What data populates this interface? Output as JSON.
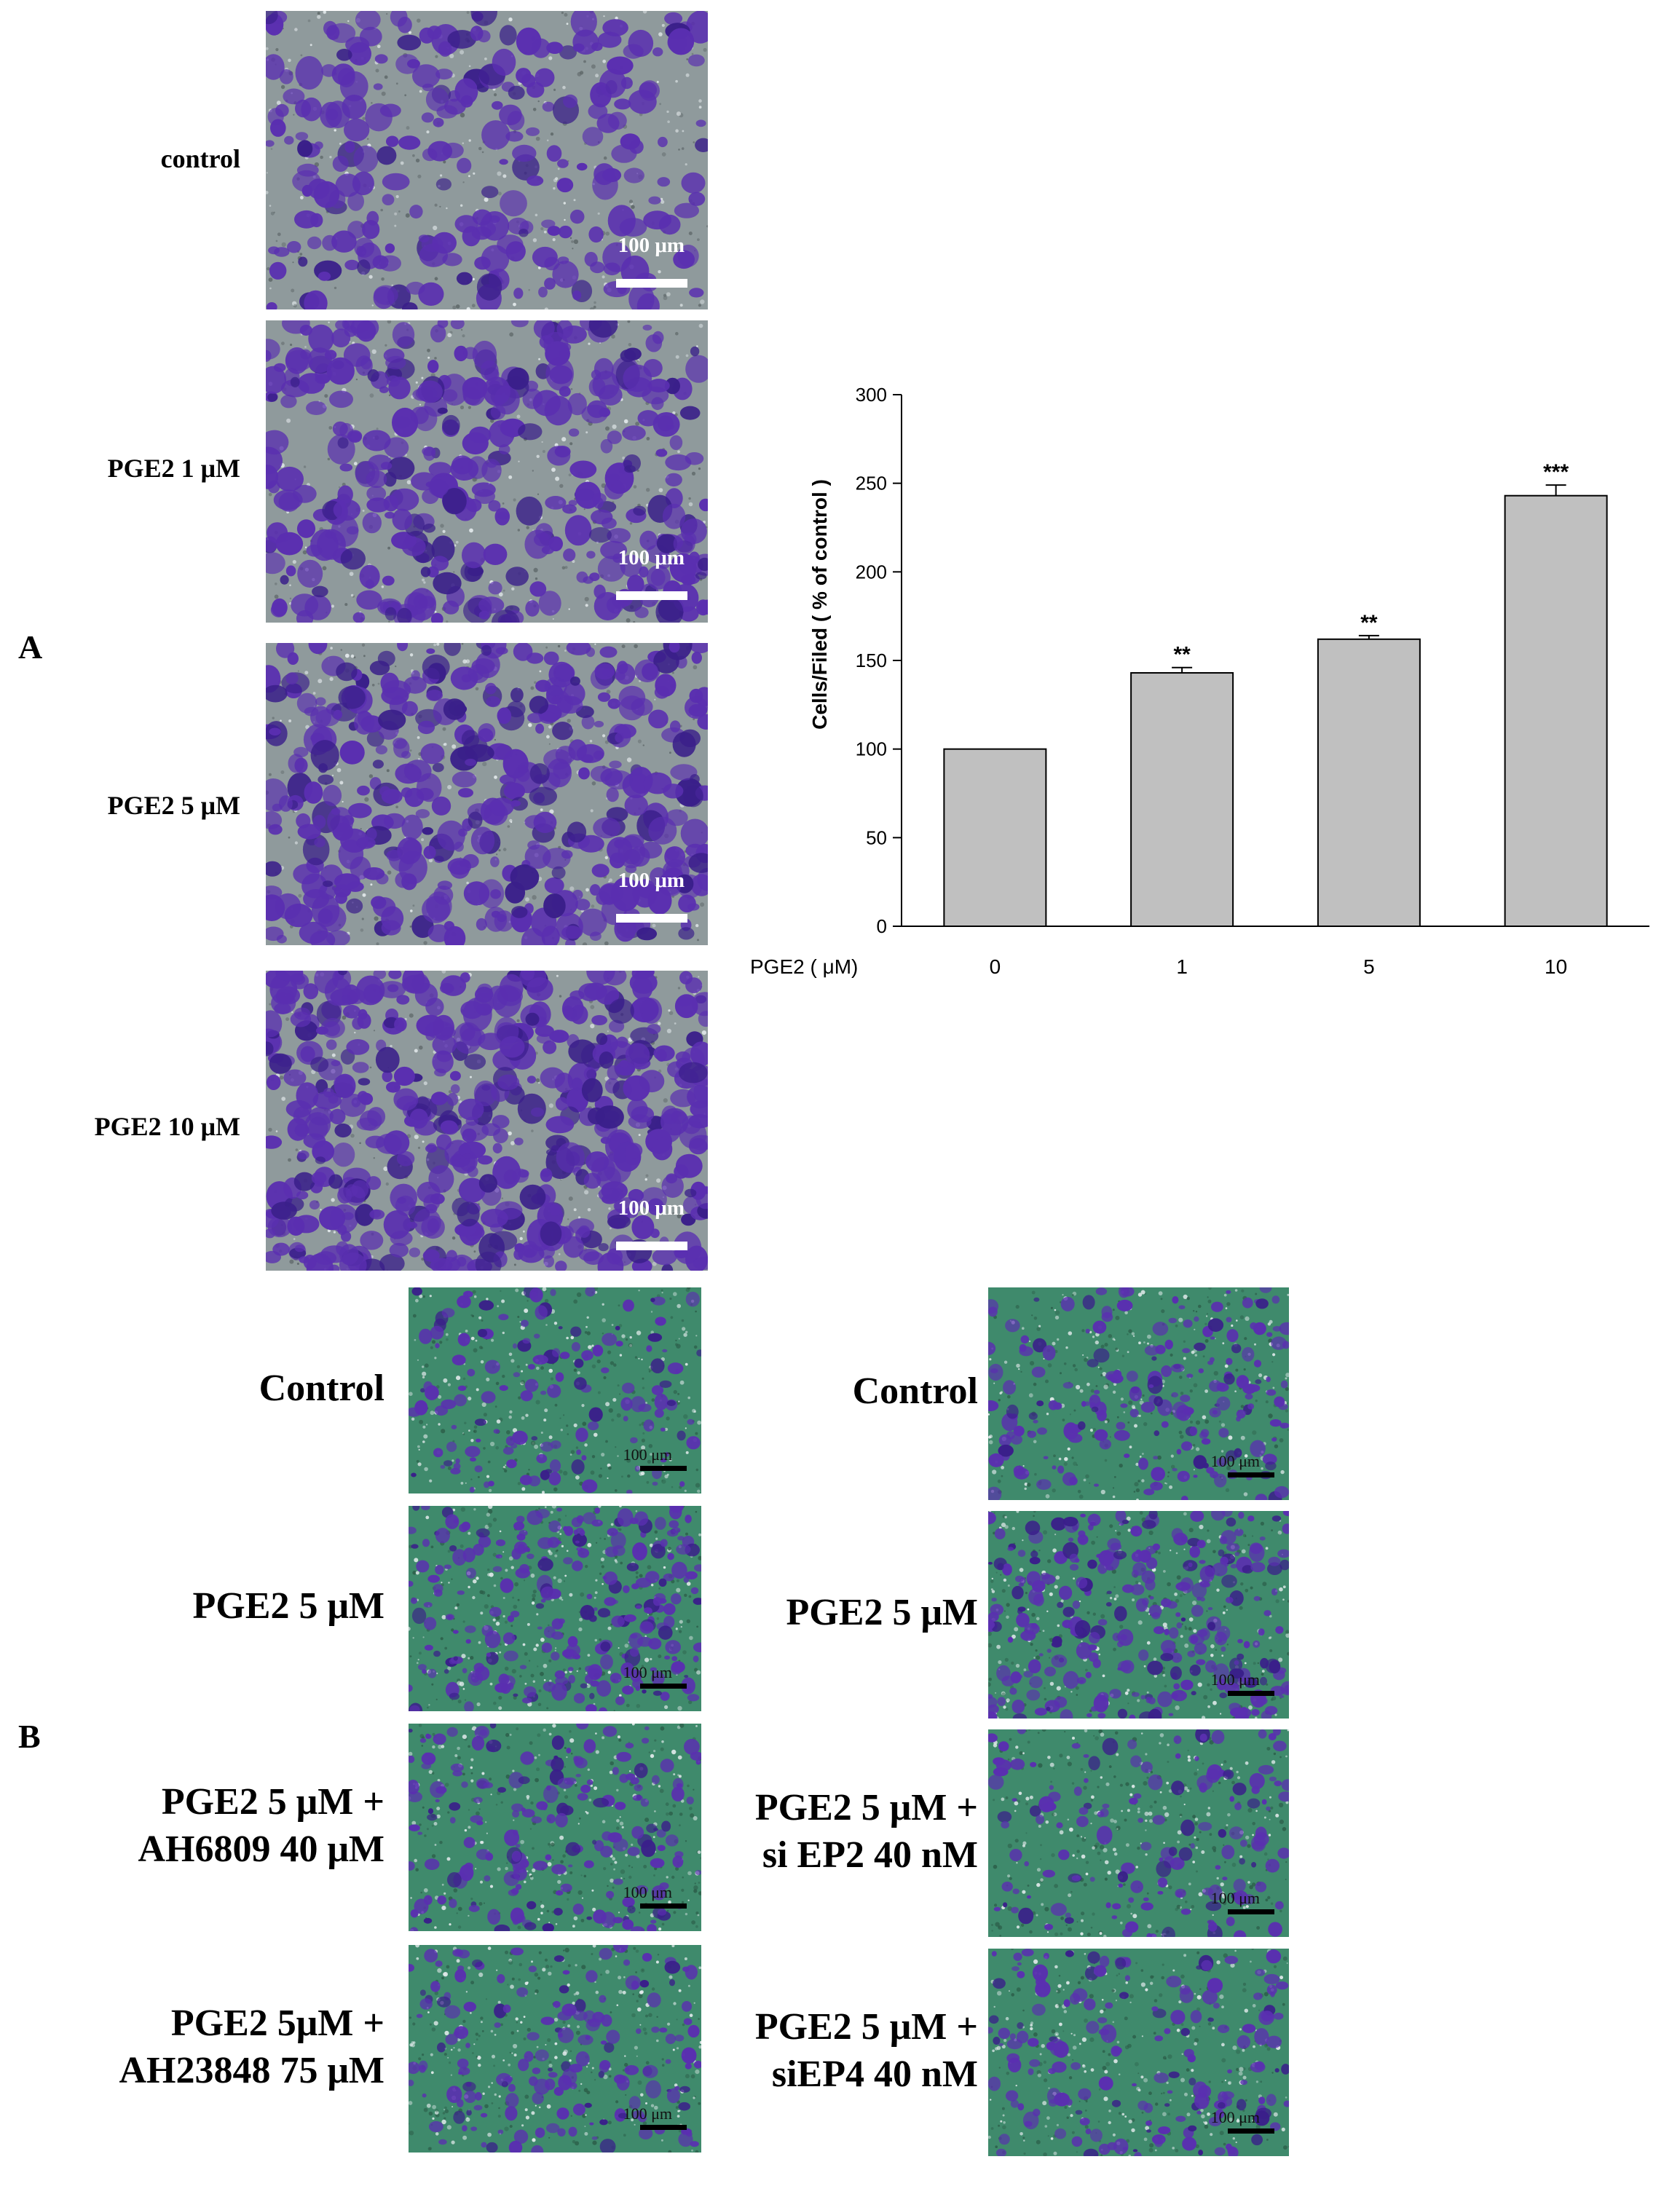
{
  "panelA": {
    "letter": "A",
    "images": [
      {
        "label": "control",
        "scale": "100 μm"
      },
      {
        "label": "PGE2 1 μM",
        "scale": "100 μm"
      },
      {
        "label": "PGE2 5 μM",
        "scale": "100 μm"
      },
      {
        "label": "PGE2 10 μM",
        "scale": "100 μm"
      }
    ]
  },
  "chart_data": {
    "type": "bar",
    "xlabel": "PGE2 (  μM)",
    "ylabel": "Cells/Filed ( % of control )",
    "categories": [
      "0",
      "1",
      "5",
      "10"
    ],
    "values": [
      100,
      143,
      162,
      243
    ],
    "errors": [
      0,
      3,
      2,
      6
    ],
    "significance": [
      "",
      "**",
      "**",
      "***"
    ],
    "ylim": [
      0,
      300
    ],
    "yticks": [
      0,
      50,
      100,
      150,
      200,
      250,
      300
    ],
    "bar_color": "#c0c0c0",
    "grid": false
  },
  "panelB": {
    "letter": "B",
    "left": [
      {
        "label": [
          "Control"
        ],
        "scale": "100 μm"
      },
      {
        "label": [
          "PGE2 5 μM"
        ],
        "scale": "100 μm"
      },
      {
        "label": [
          "PGE2 5 μM  +",
          "AH6809 40 μM"
        ],
        "scale": "100 μm"
      },
      {
        "label": [
          "PGE2 5μM +",
          "AH23848  75 μM"
        ],
        "scale": "100 μm"
      }
    ],
    "right": [
      {
        "label": [
          "Control"
        ],
        "scale": "100 μm"
      },
      {
        "label": [
          "PGE2 5 μM"
        ],
        "scale": "100 μm"
      },
      {
        "label": [
          "PGE2 5 μM +",
          "si EP2 40 nM"
        ],
        "scale": "100 μm"
      },
      {
        "label": [
          "PGE2 5 μM +",
          "siEP4 40 nM"
        ],
        "scale": "100 μm"
      }
    ]
  },
  "colors": {
    "stain_purple": "#5a2fb0",
    "membrane_gray": "#8f9a9c",
    "membrane_green": "#3f8a6c"
  }
}
